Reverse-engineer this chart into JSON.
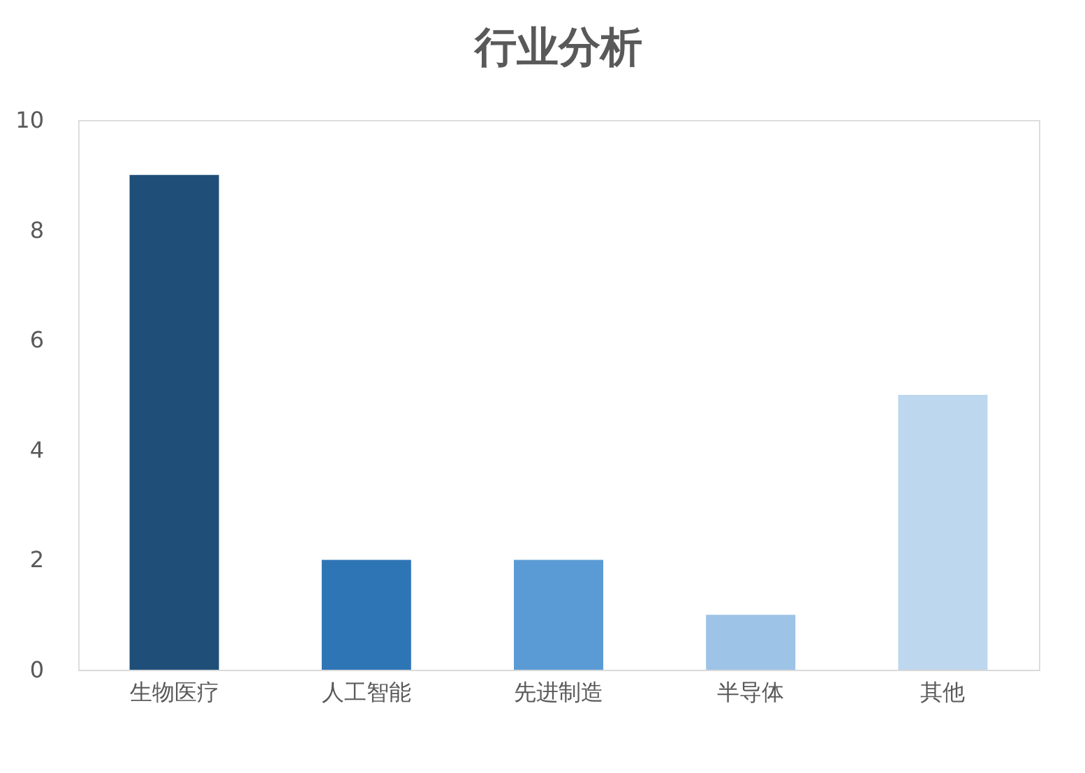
{
  "chart_data": {
    "type": "bar",
    "title": "行业分析",
    "categories": [
      "生物医疗",
      "人工智能",
      "先进制造",
      "半导体",
      "其他"
    ],
    "values": [
      9,
      2,
      2,
      1,
      5
    ],
    "colors": [
      "#1f4e79",
      "#2e75b6",
      "#5b9bd5",
      "#9dc3e6",
      "#bdd7ee"
    ],
    "ylim": [
      0,
      10
    ],
    "yticks": [
      0,
      2,
      4,
      6,
      8,
      10
    ],
    "grid": false,
    "legend": false
  }
}
